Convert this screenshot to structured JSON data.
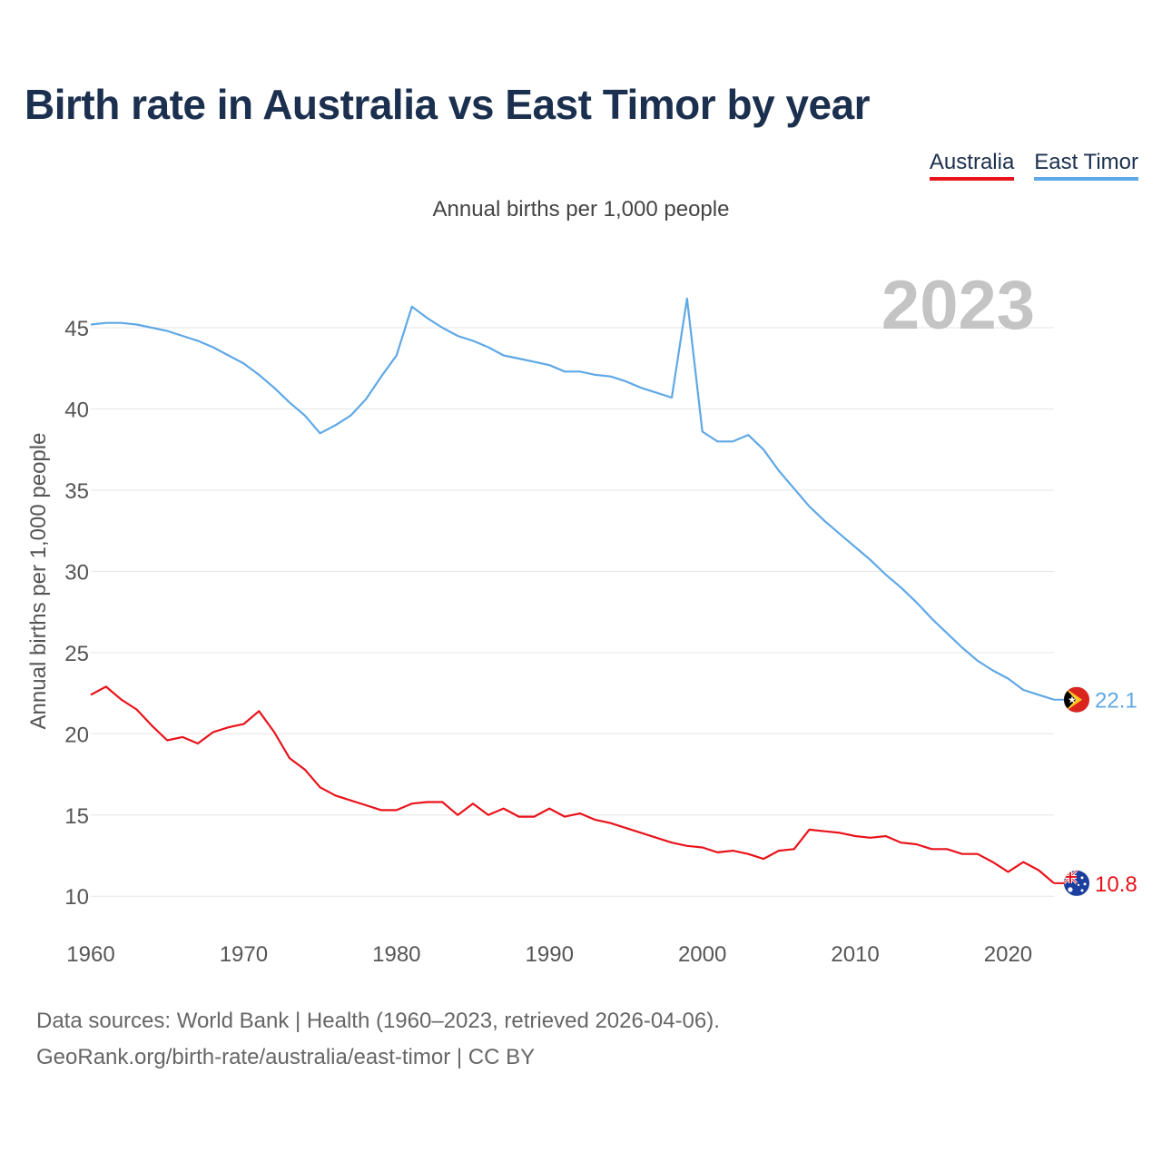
{
  "chart_data": {
    "type": "line",
    "title": "Birth rate in Australia vs East Timor by year",
    "subtitle": "Annual births per 1,000 people",
    "ylabel": "Annual births per 1,000 people",
    "xlabel": "",
    "year_label": "2023",
    "xlim": [
      1960,
      2023
    ],
    "ylim": [
      8,
      48.3
    ],
    "x_ticks": [
      1960,
      1970,
      1980,
      1990,
      2000,
      2010,
      2020
    ],
    "y_ticks": [
      10,
      15,
      20,
      25,
      30,
      35,
      40,
      45
    ],
    "x": [
      1960,
      1961,
      1962,
      1963,
      1964,
      1965,
      1966,
      1967,
      1968,
      1969,
      1970,
      1971,
      1972,
      1973,
      1974,
      1975,
      1976,
      1977,
      1978,
      1979,
      1980,
      1981,
      1982,
      1983,
      1984,
      1985,
      1986,
      1987,
      1988,
      1989,
      1990,
      1991,
      1992,
      1993,
      1994,
      1995,
      1996,
      1997,
      1998,
      1999,
      2000,
      2001,
      2002,
      2003,
      2004,
      2005,
      2006,
      2007,
      2008,
      2009,
      2010,
      2011,
      2012,
      2013,
      2014,
      2015,
      2016,
      2017,
      2018,
      2019,
      2020,
      2021,
      2022,
      2023
    ],
    "series": [
      {
        "name": "Australia",
        "color": "#e8131b",
        "end_label": "10.8",
        "flag": "australia-flag",
        "values": [
          22.4,
          22.9,
          22.1,
          21.5,
          20.5,
          19.6,
          19.8,
          19.4,
          20.1,
          20.4,
          20.6,
          21.4,
          20.1,
          18.5,
          17.8,
          16.7,
          16.2,
          15.9,
          15.6,
          15.3,
          15.3,
          15.7,
          15.8,
          15.8,
          15.0,
          15.7,
          15.0,
          15.4,
          14.9,
          14.9,
          15.4,
          14.9,
          15.1,
          14.7,
          14.5,
          14.2,
          13.9,
          13.6,
          13.3,
          13.1,
          13.0,
          12.7,
          12.8,
          12.6,
          12.3,
          12.8,
          12.9,
          14.1,
          14.0,
          13.9,
          13.7,
          13.6,
          13.7,
          13.3,
          13.2,
          12.9,
          12.9,
          12.6,
          12.6,
          12.1,
          11.5,
          12.1,
          11.6,
          10.8
        ]
      },
      {
        "name": "East Timor",
        "color": "#5fa8e6",
        "end_label": "22.1",
        "flag": "east-timor-flag",
        "values": [
          45.2,
          45.3,
          45.3,
          45.2,
          45.0,
          44.8,
          44.5,
          44.2,
          43.8,
          43.3,
          42.8,
          42.1,
          41.3,
          40.4,
          39.6,
          38.5,
          39.0,
          39.6,
          40.6,
          42.0,
          43.3,
          46.3,
          45.6,
          45.0,
          44.5,
          44.2,
          43.8,
          43.3,
          43.1,
          42.9,
          42.7,
          42.3,
          42.3,
          42.1,
          42.0,
          41.7,
          41.3,
          41.0,
          40.7,
          46.8,
          38.6,
          38.0,
          38.0,
          38.4,
          37.5,
          36.2,
          35.1,
          34.0,
          33.1,
          32.3,
          31.5,
          30.7,
          29.8,
          29.0,
          28.1,
          27.1,
          26.2,
          25.3,
          24.5,
          23.9,
          23.4,
          22.7,
          22.4,
          22.1
        ]
      }
    ]
  },
  "legend": {
    "australia": "Australia",
    "east_timor": "East Timor"
  },
  "source": {
    "line1": "Data sources: World Bank | Health (1960–2023, retrieved 2026-04-06).",
    "line2": "GeoRank.org/birth-rate/australia/east-timor | CC BY"
  },
  "colors": {
    "title": "#1b2f4e",
    "axis_text": "#555555",
    "grid": "#e6e6e6",
    "year_watermark": "#c4c4c4"
  }
}
